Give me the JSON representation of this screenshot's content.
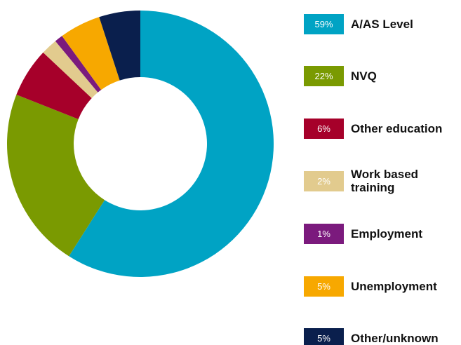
{
  "chart_data": {
    "type": "pie",
    "categories": [
      "A/AS Level",
      "NVQ",
      "Other education",
      "Work based training",
      "Employment",
      "Unemployment",
      "Other/unknown"
    ],
    "values": [
      59,
      22,
      6,
      2,
      1,
      5,
      5
    ],
    "value_labels": [
      "59%",
      "22%",
      "6%",
      "2%",
      "1%",
      "5%",
      "5%"
    ],
    "colors": [
      "#00a3c4",
      "#7a9a01",
      "#a6002a",
      "#e2cb8e",
      "#7b1a7d",
      "#f7a800",
      "#0a1f4d"
    ],
    "legend": "right"
  }
}
